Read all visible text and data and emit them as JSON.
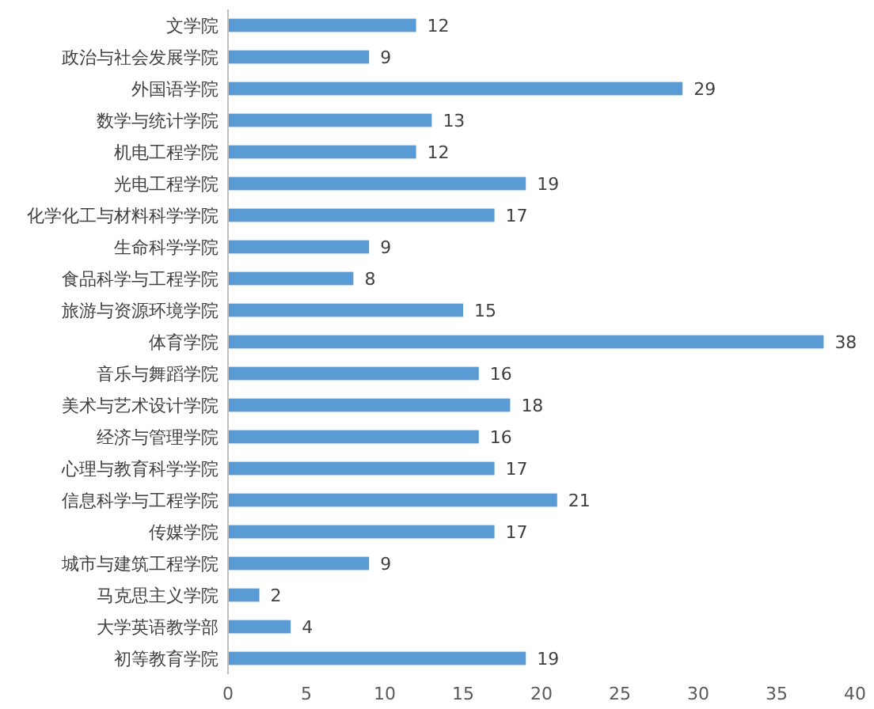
{
  "chart_data": {
    "type": "bar",
    "orientation": "horizontal",
    "categories": [
      "文学院",
      "政治与社会发展学院",
      "外国语学院",
      "数学与统计学院",
      "机电工程学院",
      "光电工程学院",
      "化学化工与材料科学学院",
      "生命科学学院",
      "食品科学与工程学院",
      "旅游与资源环境学院",
      "体育学院",
      "音乐与舞蹈学院",
      "美术与艺术设计学院",
      "经济与管理学院",
      "心理与教育科学学院",
      "信息科学与工程学院",
      "传媒学院",
      "城市与建筑工程学院",
      "马克思主义学院",
      "大学英语教学部",
      "初等教育学院"
    ],
    "values": [
      12,
      9,
      29,
      13,
      12,
      19,
      17,
      9,
      8,
      15,
      38,
      16,
      18,
      16,
      17,
      21,
      17,
      9,
      2,
      4,
      19
    ],
    "color": "#5b9bd5",
    "data_labels": true,
    "xlim": [
      0,
      40
    ],
    "xticks": [
      0,
      5,
      10,
      15,
      20,
      25,
      30,
      35,
      40
    ]
  }
}
